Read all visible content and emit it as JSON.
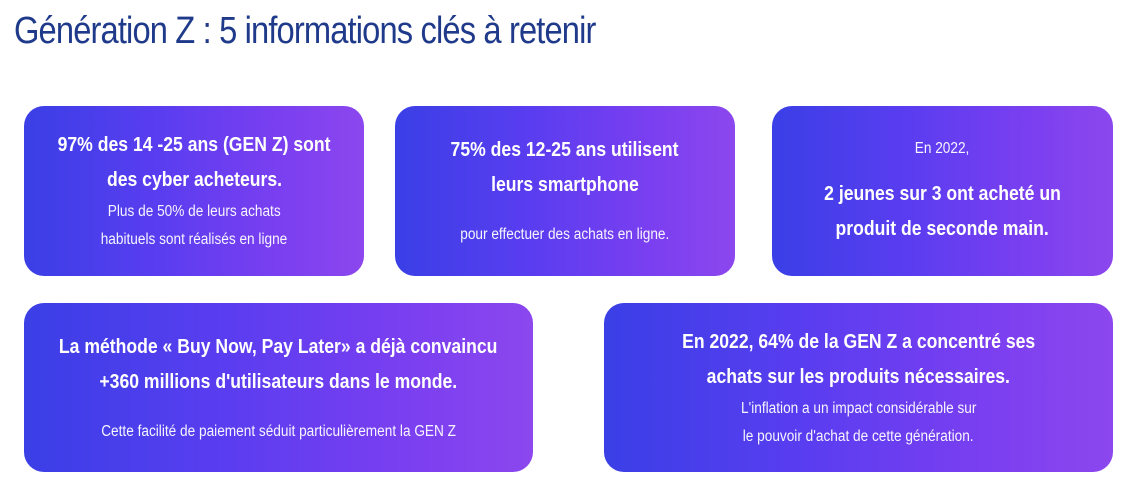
{
  "page": {
    "title": "Génération Z : 5 informations clés à retenir"
  },
  "colors": {
    "title": "#1f3a8a",
    "card_gradient_start": "#3a3fe6",
    "card_gradient_end": "#8c47ee",
    "card_text": "#ffffff"
  },
  "cards": [
    {
      "headline": [
        "97% des 14 -25 ans (GEN Z) sont",
        "des cyber acheteurs."
      ],
      "detail": [
        "Plus de 50% de leurs achats",
        "habituels sont réalisés en ligne"
      ]
    },
    {
      "headline": [
        "75% des 12-25 ans utilisent",
        "leurs smartphone"
      ],
      "detail": [
        "pour effectuer des achats en ligne."
      ]
    },
    {
      "intro": "En 2022,",
      "headline": [
        "2 jeunes sur 3 ont acheté un",
        "produit de seconde main."
      ]
    },
    {
      "headline": [
        "La méthode « Buy Now, Pay Later» a déjà convaincu",
        "+360 millions d'utilisateurs dans le monde."
      ],
      "detail": [
        "Cette facilité de paiement séduit particulièrement la GEN Z"
      ]
    },
    {
      "headline": [
        "En 2022, 64% de la GEN Z a concentré ses",
        "achats sur les produits nécessaires."
      ],
      "detail": [
        "L'inflation a un impact considérable sur",
        "le pouvoir d'achat de cette génération."
      ]
    }
  ]
}
